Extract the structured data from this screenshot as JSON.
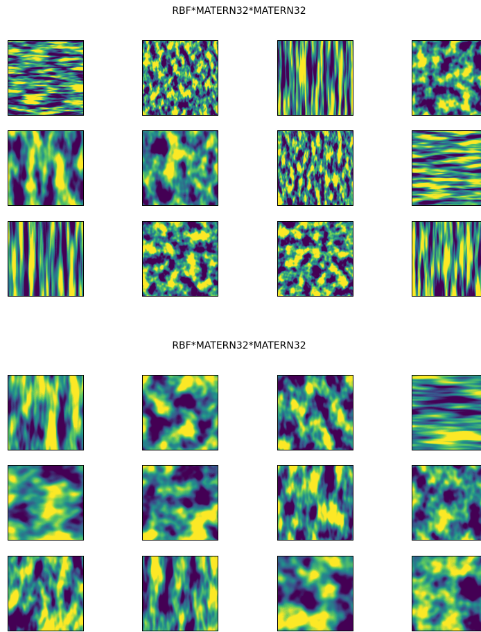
{
  "panels": [
    {
      "title": "RBF*MATERN32*MATERN32"
    },
    {
      "title": "RBF*MATERN32*MATERN32"
    }
  ]
}
